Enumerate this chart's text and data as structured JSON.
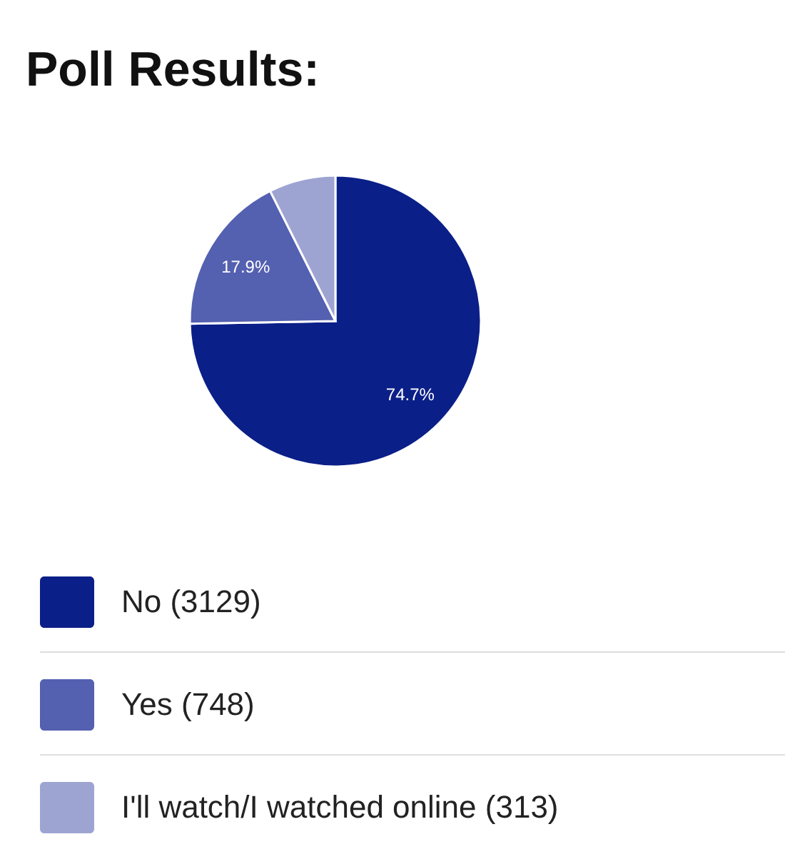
{
  "chart_data": {
    "type": "pie",
    "title": "Poll Results:",
    "categories": [
      "No (3129)",
      "Yes (748)",
      "I'll watch/I watched online (313)"
    ],
    "values": [
      74.7,
      17.9,
      7.4
    ],
    "colors": [
      "#0b1f88",
      "#5460b0",
      "#9ea4d2"
    ],
    "value_labels": [
      "74.7%",
      "17.9%",
      null
    ],
    "legend": "bottom"
  }
}
